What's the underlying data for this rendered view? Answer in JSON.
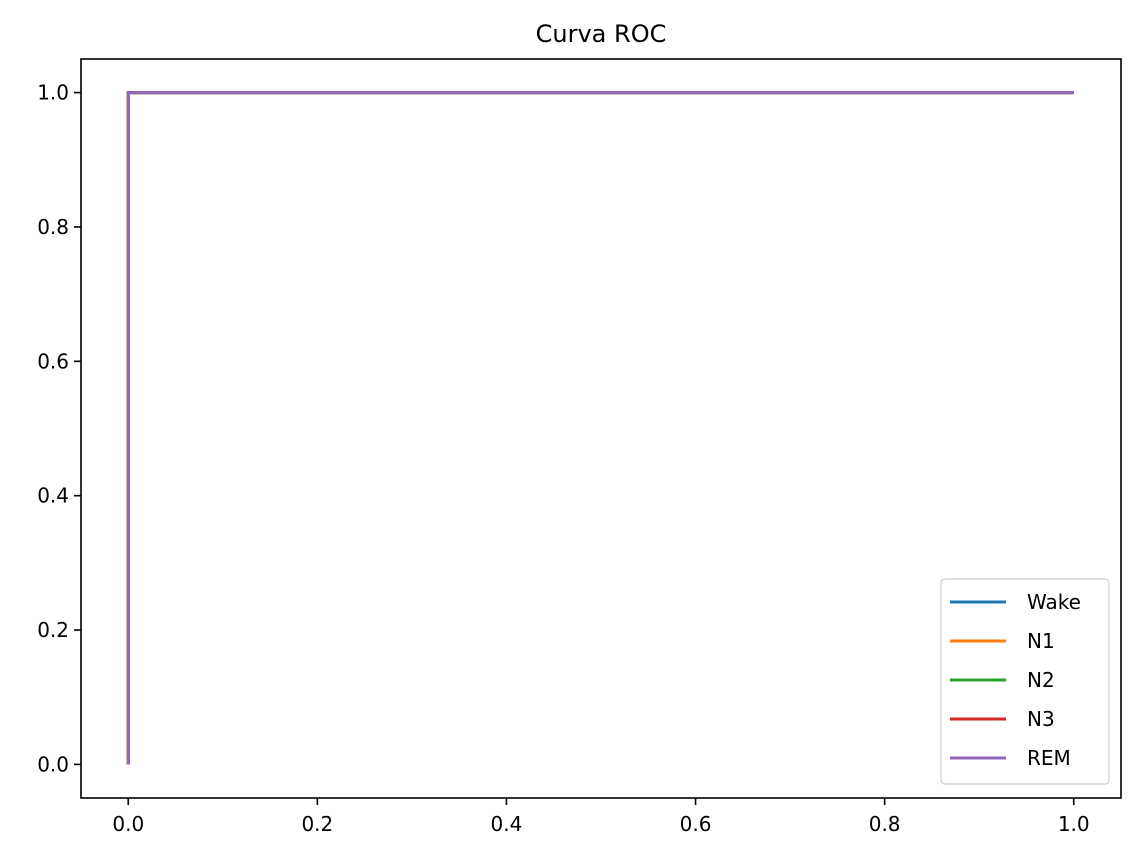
{
  "chart_data": {
    "type": "line",
    "title": "Curva ROC",
    "xlabel": "",
    "ylabel": "",
    "xlim": [
      -0.05,
      1.05
    ],
    "ylim": [
      -0.05,
      1.05
    ],
    "xticks": [
      0.0,
      0.2,
      0.4,
      0.6,
      0.8,
      1.0
    ],
    "xtick_labels": [
      "0.0",
      "0.2",
      "0.4",
      "0.6",
      "0.8",
      "1.0"
    ],
    "yticks": [
      0.0,
      0.2,
      0.4,
      0.6,
      0.8,
      1.0
    ],
    "ytick_labels": [
      "0.0",
      "0.2",
      "0.4",
      "0.6",
      "0.8",
      "1.0"
    ],
    "grid": false,
    "legend_position": "lower-right",
    "series": [
      {
        "name": "Wake",
        "color": "#1f77b4",
        "x": [
          0.0,
          0.0,
          1.0
        ],
        "y": [
          0.0,
          1.0,
          1.0
        ]
      },
      {
        "name": "N1",
        "color": "#ff7f0e",
        "x": [
          0.0,
          0.0,
          1.0
        ],
        "y": [
          0.0,
          1.0,
          1.0
        ]
      },
      {
        "name": "N2",
        "color": "#2ca02c",
        "x": [
          0.0,
          0.0,
          1.0
        ],
        "y": [
          0.0,
          1.0,
          1.0
        ]
      },
      {
        "name": "N3",
        "color": "#d62728",
        "x": [
          0.0,
          0.0,
          1.0
        ],
        "y": [
          0.0,
          1.0,
          1.0
        ]
      },
      {
        "name": "REM",
        "color": "#9467bd",
        "x": [
          0.0,
          0.0,
          1.0
        ],
        "y": [
          0.0,
          1.0,
          1.0
        ]
      }
    ]
  }
}
